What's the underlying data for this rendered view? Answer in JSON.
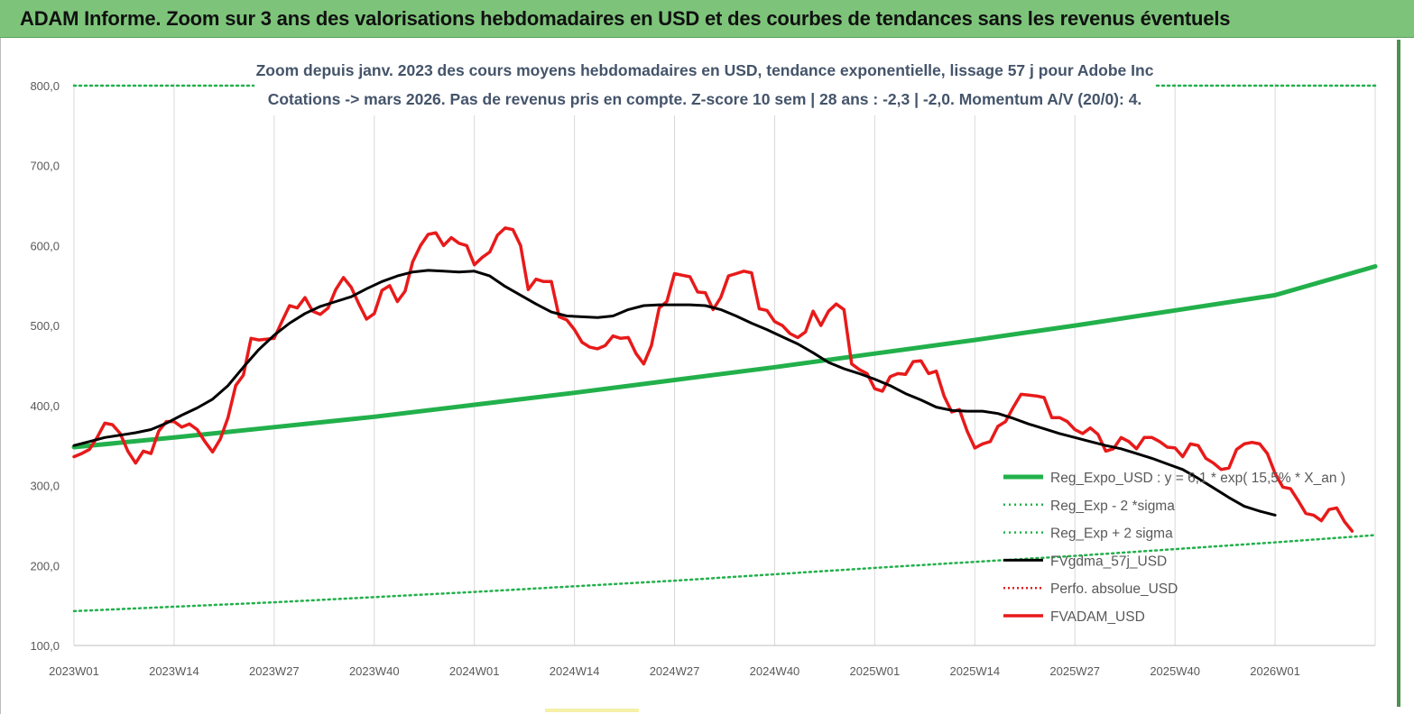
{
  "header": {
    "title": "ADAM Informe. Zoom sur 3 ans des valorisations hebdomadaires en USD et des courbes de tendances sans les revenus éventuels"
  },
  "colors": {
    "banner": "#7dc47a",
    "reg_expo": "#22b04b",
    "sigma": "#22b04b",
    "fvgdma": "#000000",
    "perfo": "#e02020",
    "fvadam": "#e81a1a"
  },
  "chart_data": {
    "type": "line",
    "subtitle_line1": "Zoom depuis janv. 2023  des cours moyens hebdomadaires en USD, tendance exponentielle, lissage 57 j pour Adobe Inc",
    "subtitle_line2": "Cotations -> mars 2026. Pas de revenus pris en  compte. Z-score 10 sem  | 28 ans : -2,3 | -2,0. Momentum A/V (20/0): 4.",
    "xlabel": "",
    "ylabel": "",
    "ylim": [
      100,
      800
    ],
    "y_ticks": [
      "100,0",
      "200,0",
      "300,0",
      "400,0",
      "500,0",
      "600,0",
      "700,0",
      "800,0"
    ],
    "x_ticks": [
      "2023W01",
      "2023W14",
      "2023W27",
      "2023W40",
      "2024W01",
      "2024W14",
      "2024W27",
      "2024W40",
      "2025W01",
      "2025W14",
      "2025W27",
      "2025W40",
      "2026W01"
    ],
    "x_range_weeks": [
      0,
      169
    ],
    "grid": "vertical",
    "legend_position": "bottom-right",
    "series": [
      {
        "name": "Reg_Expo_USD : y = 6,1 * exp( 15,5% *  X_an )",
        "style": "solid-thick",
        "points": [
          [
            0,
            348
          ],
          [
            13,
            360
          ],
          [
            26,
            373
          ],
          [
            39,
            386
          ],
          [
            52,
            401
          ],
          [
            65,
            416
          ],
          [
            78,
            432
          ],
          [
            91,
            448
          ],
          [
            104,
            465
          ],
          [
            117,
            482
          ],
          [
            130,
            500
          ],
          [
            143,
            519
          ],
          [
            156,
            538
          ],
          [
            169,
            574
          ]
        ]
      },
      {
        "name": "Reg_Exp - 2 *sigma",
        "style": "dotted",
        "points": [
          [
            0,
            800
          ],
          [
            169,
            800
          ]
        ]
      },
      {
        "name": "Reg_Exp + 2 sigma",
        "style": "dotted",
        "points": [
          [
            0,
            143
          ],
          [
            26,
            154
          ],
          [
            52,
            167
          ],
          [
            78,
            181
          ],
          [
            104,
            197
          ],
          [
            130,
            212
          ],
          [
            156,
            229
          ],
          [
            169,
            238
          ]
        ]
      },
      {
        "name": "FVgdma_57j_USD",
        "style": "solid",
        "points": [
          [
            0,
            350
          ],
          [
            2,
            355
          ],
          [
            4,
            360
          ],
          [
            6,
            363
          ],
          [
            8,
            366
          ],
          [
            10,
            370
          ],
          [
            12,
            378
          ],
          [
            14,
            388
          ],
          [
            16,
            397
          ],
          [
            18,
            408
          ],
          [
            20,
            425
          ],
          [
            22,
            448
          ],
          [
            24,
            470
          ],
          [
            26,
            488
          ],
          [
            28,
            503
          ],
          [
            30,
            515
          ],
          [
            32,
            524
          ],
          [
            34,
            530
          ],
          [
            36,
            536
          ],
          [
            38,
            546
          ],
          [
            40,
            555
          ],
          [
            42,
            562
          ],
          [
            44,
            567
          ],
          [
            46,
            569
          ],
          [
            48,
            568
          ],
          [
            50,
            567
          ],
          [
            52,
            568
          ],
          [
            54,
            562
          ],
          [
            56,
            549
          ],
          [
            58,
            538
          ],
          [
            60,
            527
          ],
          [
            62,
            517
          ],
          [
            64,
            512
          ],
          [
            66,
            511
          ],
          [
            68,
            510
          ],
          [
            70,
            512
          ],
          [
            72,
            520
          ],
          [
            74,
            525
          ],
          [
            76,
            526
          ],
          [
            78,
            526
          ],
          [
            80,
            526
          ],
          [
            82,
            525
          ],
          [
            84,
            520
          ],
          [
            86,
            512
          ],
          [
            88,
            503
          ],
          [
            90,
            495
          ],
          [
            92,
            486
          ],
          [
            94,
            477
          ],
          [
            96,
            466
          ],
          [
            98,
            454
          ],
          [
            100,
            446
          ],
          [
            102,
            440
          ],
          [
            104,
            433
          ],
          [
            106,
            425
          ],
          [
            108,
            415
          ],
          [
            110,
            407
          ],
          [
            112,
            398
          ],
          [
            114,
            394
          ],
          [
            116,
            393
          ],
          [
            118,
            393
          ],
          [
            120,
            390
          ],
          [
            122,
            384
          ],
          [
            124,
            377
          ],
          [
            126,
            371
          ],
          [
            128,
            365
          ],
          [
            130,
            360
          ],
          [
            132,
            355
          ],
          [
            134,
            350
          ],
          [
            136,
            346
          ],
          [
            138,
            340
          ],
          [
            140,
            334
          ],
          [
            142,
            327
          ],
          [
            144,
            320
          ],
          [
            146,
            309
          ],
          [
            148,
            297
          ],
          [
            150,
            285
          ],
          [
            152,
            274
          ],
          [
            154,
            268
          ],
          [
            156,
            263
          ]
        ]
      },
      {
        "name": "Perfo. absolue_USD",
        "style": "dotted",
        "points": []
      },
      {
        "name": "FVADAM_USD",
        "style": "solid-thick",
        "points": [
          [
            0,
            336
          ],
          [
            1,
            340
          ],
          [
            2,
            345
          ],
          [
            3,
            360
          ],
          [
            4,
            378
          ],
          [
            5,
            376
          ],
          [
            6,
            365
          ],
          [
            7,
            343
          ],
          [
            8,
            328
          ],
          [
            9,
            343
          ],
          [
            10,
            340
          ],
          [
            11,
            368
          ],
          [
            12,
            380
          ],
          [
            13,
            380
          ],
          [
            14,
            373
          ],
          [
            15,
            377
          ],
          [
            16,
            370
          ],
          [
            17,
            355
          ],
          [
            18,
            342
          ],
          [
            19,
            358
          ],
          [
            20,
            385
          ],
          [
            21,
            425
          ],
          [
            22,
            438
          ],
          [
            23,
            484
          ],
          [
            24,
            482
          ],
          [
            25,
            483
          ],
          [
            26,
            484
          ],
          [
            27,
            505
          ],
          [
            28,
            525
          ],
          [
            29,
            522
          ],
          [
            30,
            535
          ],
          [
            31,
            518
          ],
          [
            32,
            514
          ],
          [
            33,
            522
          ],
          [
            34,
            545
          ],
          [
            35,
            560
          ],
          [
            36,
            548
          ],
          [
            37,
            527
          ],
          [
            38,
            508
          ],
          [
            39,
            515
          ],
          [
            40,
            544
          ],
          [
            41,
            550
          ],
          [
            42,
            530
          ],
          [
            43,
            543
          ],
          [
            44,
            580
          ],
          [
            45,
            600
          ],
          [
            46,
            614
          ],
          [
            47,
            616
          ],
          [
            48,
            600
          ],
          [
            49,
            610
          ],
          [
            50,
            603
          ],
          [
            51,
            600
          ],
          [
            52,
            576
          ],
          [
            53,
            585
          ],
          [
            54,
            592
          ],
          [
            55,
            613
          ],
          [
            56,
            622
          ],
          [
            57,
            620
          ],
          [
            58,
            600
          ],
          [
            59,
            545
          ],
          [
            60,
            558
          ],
          [
            61,
            555
          ],
          [
            62,
            555
          ],
          [
            63,
            511
          ],
          [
            64,
            507
          ],
          [
            65,
            495
          ],
          [
            66,
            479
          ],
          [
            67,
            473
          ],
          [
            68,
            471
          ],
          [
            69,
            475
          ],
          [
            70,
            487
          ],
          [
            71,
            484
          ],
          [
            72,
            485
          ],
          [
            73,
            465
          ],
          [
            74,
            452
          ],
          [
            75,
            475
          ],
          [
            76,
            522
          ],
          [
            77,
            530
          ],
          [
            78,
            565
          ],
          [
            79,
            563
          ],
          [
            80,
            561
          ],
          [
            81,
            542
          ],
          [
            82,
            541
          ],
          [
            83,
            520
          ],
          [
            84,
            535
          ],
          [
            85,
            562
          ],
          [
            86,
            565
          ],
          [
            87,
            568
          ],
          [
            88,
            566
          ],
          [
            89,
            521
          ],
          [
            90,
            519
          ],
          [
            91,
            505
          ],
          [
            92,
            500
          ],
          [
            93,
            490
          ],
          [
            94,
            485
          ],
          [
            95,
            492
          ],
          [
            96,
            518
          ],
          [
            97,
            500
          ],
          [
            98,
            518
          ],
          [
            99,
            527
          ],
          [
            100,
            520
          ],
          [
            101,
            452
          ],
          [
            102,
            445
          ],
          [
            103,
            440
          ],
          [
            104,
            421
          ],
          [
            105,
            418
          ],
          [
            106,
            436
          ],
          [
            107,
            440
          ],
          [
            108,
            439
          ],
          [
            109,
            455
          ],
          [
            110,
            456
          ],
          [
            111,
            440
          ],
          [
            112,
            443
          ],
          [
            113,
            412
          ],
          [
            114,
            392
          ],
          [
            115,
            395
          ],
          [
            116,
            368
          ],
          [
            117,
            347
          ],
          [
            118,
            352
          ],
          [
            119,
            355
          ],
          [
            120,
            374
          ],
          [
            121,
            380
          ],
          [
            122,
            398
          ],
          [
            123,
            414
          ],
          [
            124,
            413
          ],
          [
            125,
            412
          ],
          [
            126,
            410
          ],
          [
            127,
            385
          ],
          [
            128,
            385
          ],
          [
            129,
            380
          ],
          [
            130,
            370
          ],
          [
            131,
            365
          ],
          [
            132,
            372
          ],
          [
            133,
            364
          ],
          [
            134,
            343
          ],
          [
            135,
            346
          ],
          [
            136,
            360
          ],
          [
            137,
            355
          ],
          [
            138,
            346
          ],
          [
            139,
            360
          ],
          [
            140,
            360
          ],
          [
            141,
            355
          ],
          [
            142,
            348
          ],
          [
            143,
            347
          ],
          [
            144,
            336
          ],
          [
            145,
            352
          ],
          [
            146,
            350
          ],
          [
            147,
            334
          ],
          [
            148,
            328
          ],
          [
            149,
            320
          ],
          [
            150,
            322
          ],
          [
            151,
            345
          ],
          [
            152,
            352
          ],
          [
            153,
            354
          ],
          [
            154,
            352
          ],
          [
            155,
            340
          ],
          [
            156,
            315
          ],
          [
            157,
            298
          ],
          [
            158,
            296
          ],
          [
            159,
            281
          ],
          [
            160,
            265
          ],
          [
            161,
            263
          ],
          [
            162,
            256
          ],
          [
            163,
            270
          ],
          [
            164,
            272
          ],
          [
            165,
            255
          ],
          [
            166,
            243
          ]
        ]
      }
    ]
  }
}
